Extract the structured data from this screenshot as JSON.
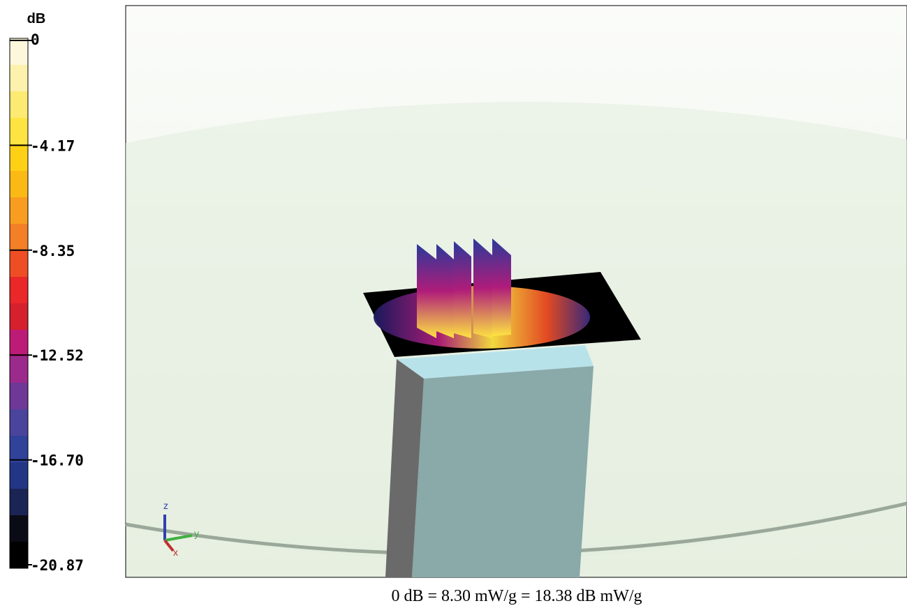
{
  "colorbar": {
    "unit": "dB",
    "ticks": [
      "0",
      "-4.17",
      "-8.35",
      "-12.52",
      "-16.70",
      "-20.87"
    ],
    "colors": [
      "#fdf8dc",
      "#fdf1ae",
      "#fdea72",
      "#fde442",
      "#fed116",
      "#fbb916",
      "#f89d20",
      "#f38027",
      "#ef4e24",
      "#ea2729",
      "#d5202e",
      "#bd1b78",
      "#9b2a8c",
      "#6e3896",
      "#4a449c",
      "#30429a",
      "#223685",
      "#1a2555",
      "#0b0b16",
      "#000000"
    ]
  },
  "viewport": {
    "axes": [
      "z",
      "y",
      "x"
    ]
  },
  "caption": "0 dB = 8.30 mW/g = 18.38 dB mW/g"
}
